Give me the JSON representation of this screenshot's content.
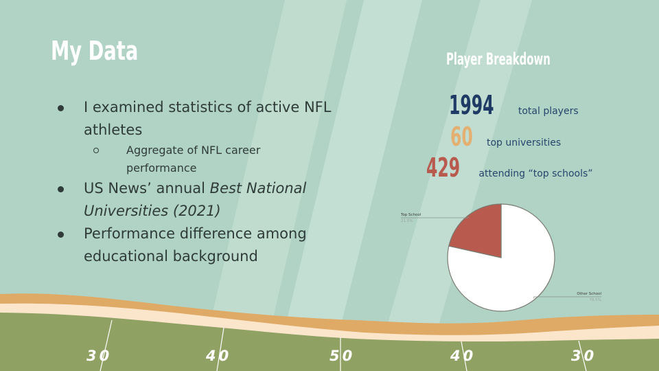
{
  "slide": {
    "title": "My Data",
    "bullets": [
      "I examined statistics of active NFL athletes",
      "US News’ annual ",
      "Performance difference among educational background"
    ],
    "sub_bullet": "Aggregate of NFL career performance",
    "bullet2_italic": "Best National Universities (2021)"
  },
  "breakdown": {
    "title": "Player Breakdown",
    "stats": [
      {
        "value": "1994",
        "label": "total players",
        "color": "#1f3a64"
      },
      {
        "value": "60",
        "label": "top universities",
        "color": "#e3b071"
      },
      {
        "value": "429",
        "label": "attending “top schools”",
        "color": "#b85a4d"
      }
    ]
  },
  "chart_data": {
    "type": "pie",
    "slices": [
      {
        "name": "Top School",
        "value": 21.5,
        "percent_label": "21.5%",
        "color": "#b85a4d"
      },
      {
        "name": "Other School",
        "value": 78.5,
        "percent_label": "78.5%",
        "color": "#ffffff"
      }
    ]
  },
  "field": {
    "yard_labels": [
      "30",
      "40",
      "50",
      "40",
      "30"
    ]
  },
  "colors": {
    "background": "#b1d3c5",
    "field_green": "#8fa163",
    "stripe_orange": "#dfaa66",
    "stripe_cream": "#fbe6cc"
  }
}
